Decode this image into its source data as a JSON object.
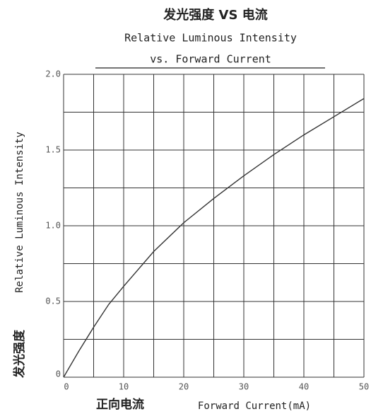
{
  "chart_data": {
    "type": "line",
    "title": "发光强度 VS 电流",
    "subtitle": [
      "Relative Luminous Intensity",
      "vs. Forward Current"
    ],
    "xlabel_cn": "正向电流",
    "xlabel": "Forward Current(mA)",
    "ylabel_cn": "发光强度",
    "ylabel": "Relative Luminous Intensity",
    "x": [
      0,
      2.5,
      5,
      7.5,
      10,
      15,
      20,
      25,
      30,
      35,
      40,
      45,
      50
    ],
    "series": [
      {
        "color": "#333333",
        "values": [
          0,
          0.17,
          0.33,
          0.48,
          0.6,
          0.83,
          1.02,
          1.18,
          1.33,
          1.47,
          1.6,
          1.72,
          1.84
        ]
      }
    ],
    "xlim": [
      0,
      50
    ],
    "ylim": [
      0,
      2
    ],
    "xticks": [
      0,
      10,
      20,
      30,
      40,
      50
    ],
    "yticks": [
      0,
      0.5,
      {
        "value": 1,
        "label": "1.0"
      },
      1.5,
      {
        "value": 2,
        "label": "2.0"
      }
    ],
    "x_minor_ticks": [
      5,
      15,
      25,
      35,
      45
    ],
    "y_minor_ticks": [
      0.25,
      0.75,
      1.25,
      1.75
    ],
    "grid": true
  }
}
